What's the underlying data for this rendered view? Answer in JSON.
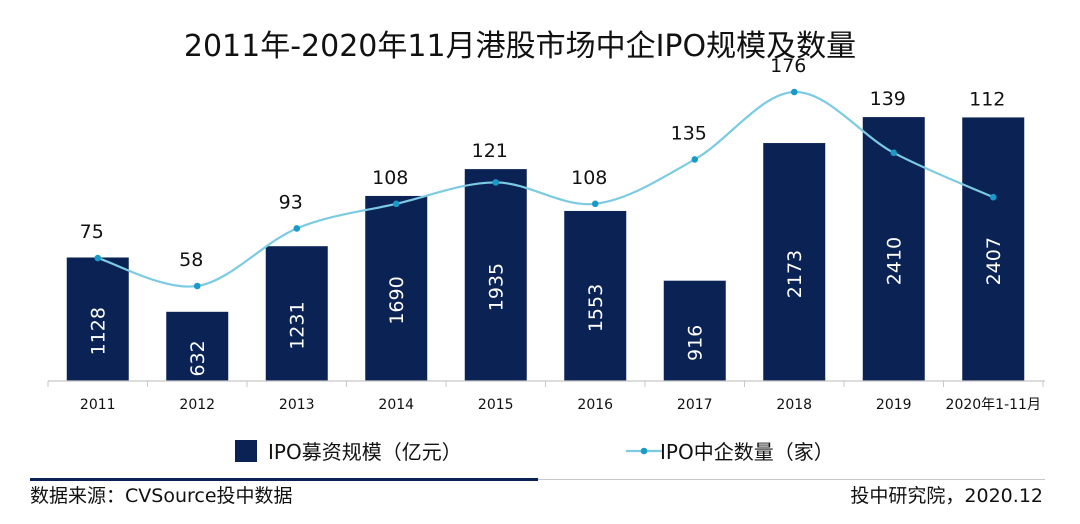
{
  "chart_data": {
    "type": "bar",
    "title": "2011年-2020年11月港股市场中企IPO规模及数量",
    "categories": [
      "2011",
      "2012",
      "2013",
      "2014",
      "2015",
      "2016",
      "2017",
      "2018",
      "2019",
      "2020年1-11月"
    ],
    "series": [
      {
        "name": "IPO募资规模（亿元）",
        "type": "bar",
        "values": [
          1128,
          632,
          1231,
          1690,
          1935,
          1553,
          916,
          2173,
          2410,
          2407
        ],
        "color": "#0a2254"
      },
      {
        "name": "IPO中企数量（家）",
        "type": "line",
        "smooth": true,
        "values": [
          75,
          58,
          93,
          108,
          121,
          108,
          135,
          176,
          139,
          112
        ],
        "color": "#7ccbe3",
        "marker_color": "#1a9ac8"
      }
    ],
    "grid": false,
    "legend_position": "bottom"
  },
  "footer": {
    "source": "数据来源：CVSource投中数据",
    "publisher": "投中研究院，2020.12"
  },
  "colors": {
    "footer_rule": "#0a2254",
    "axis": "#c8c8c8"
  }
}
